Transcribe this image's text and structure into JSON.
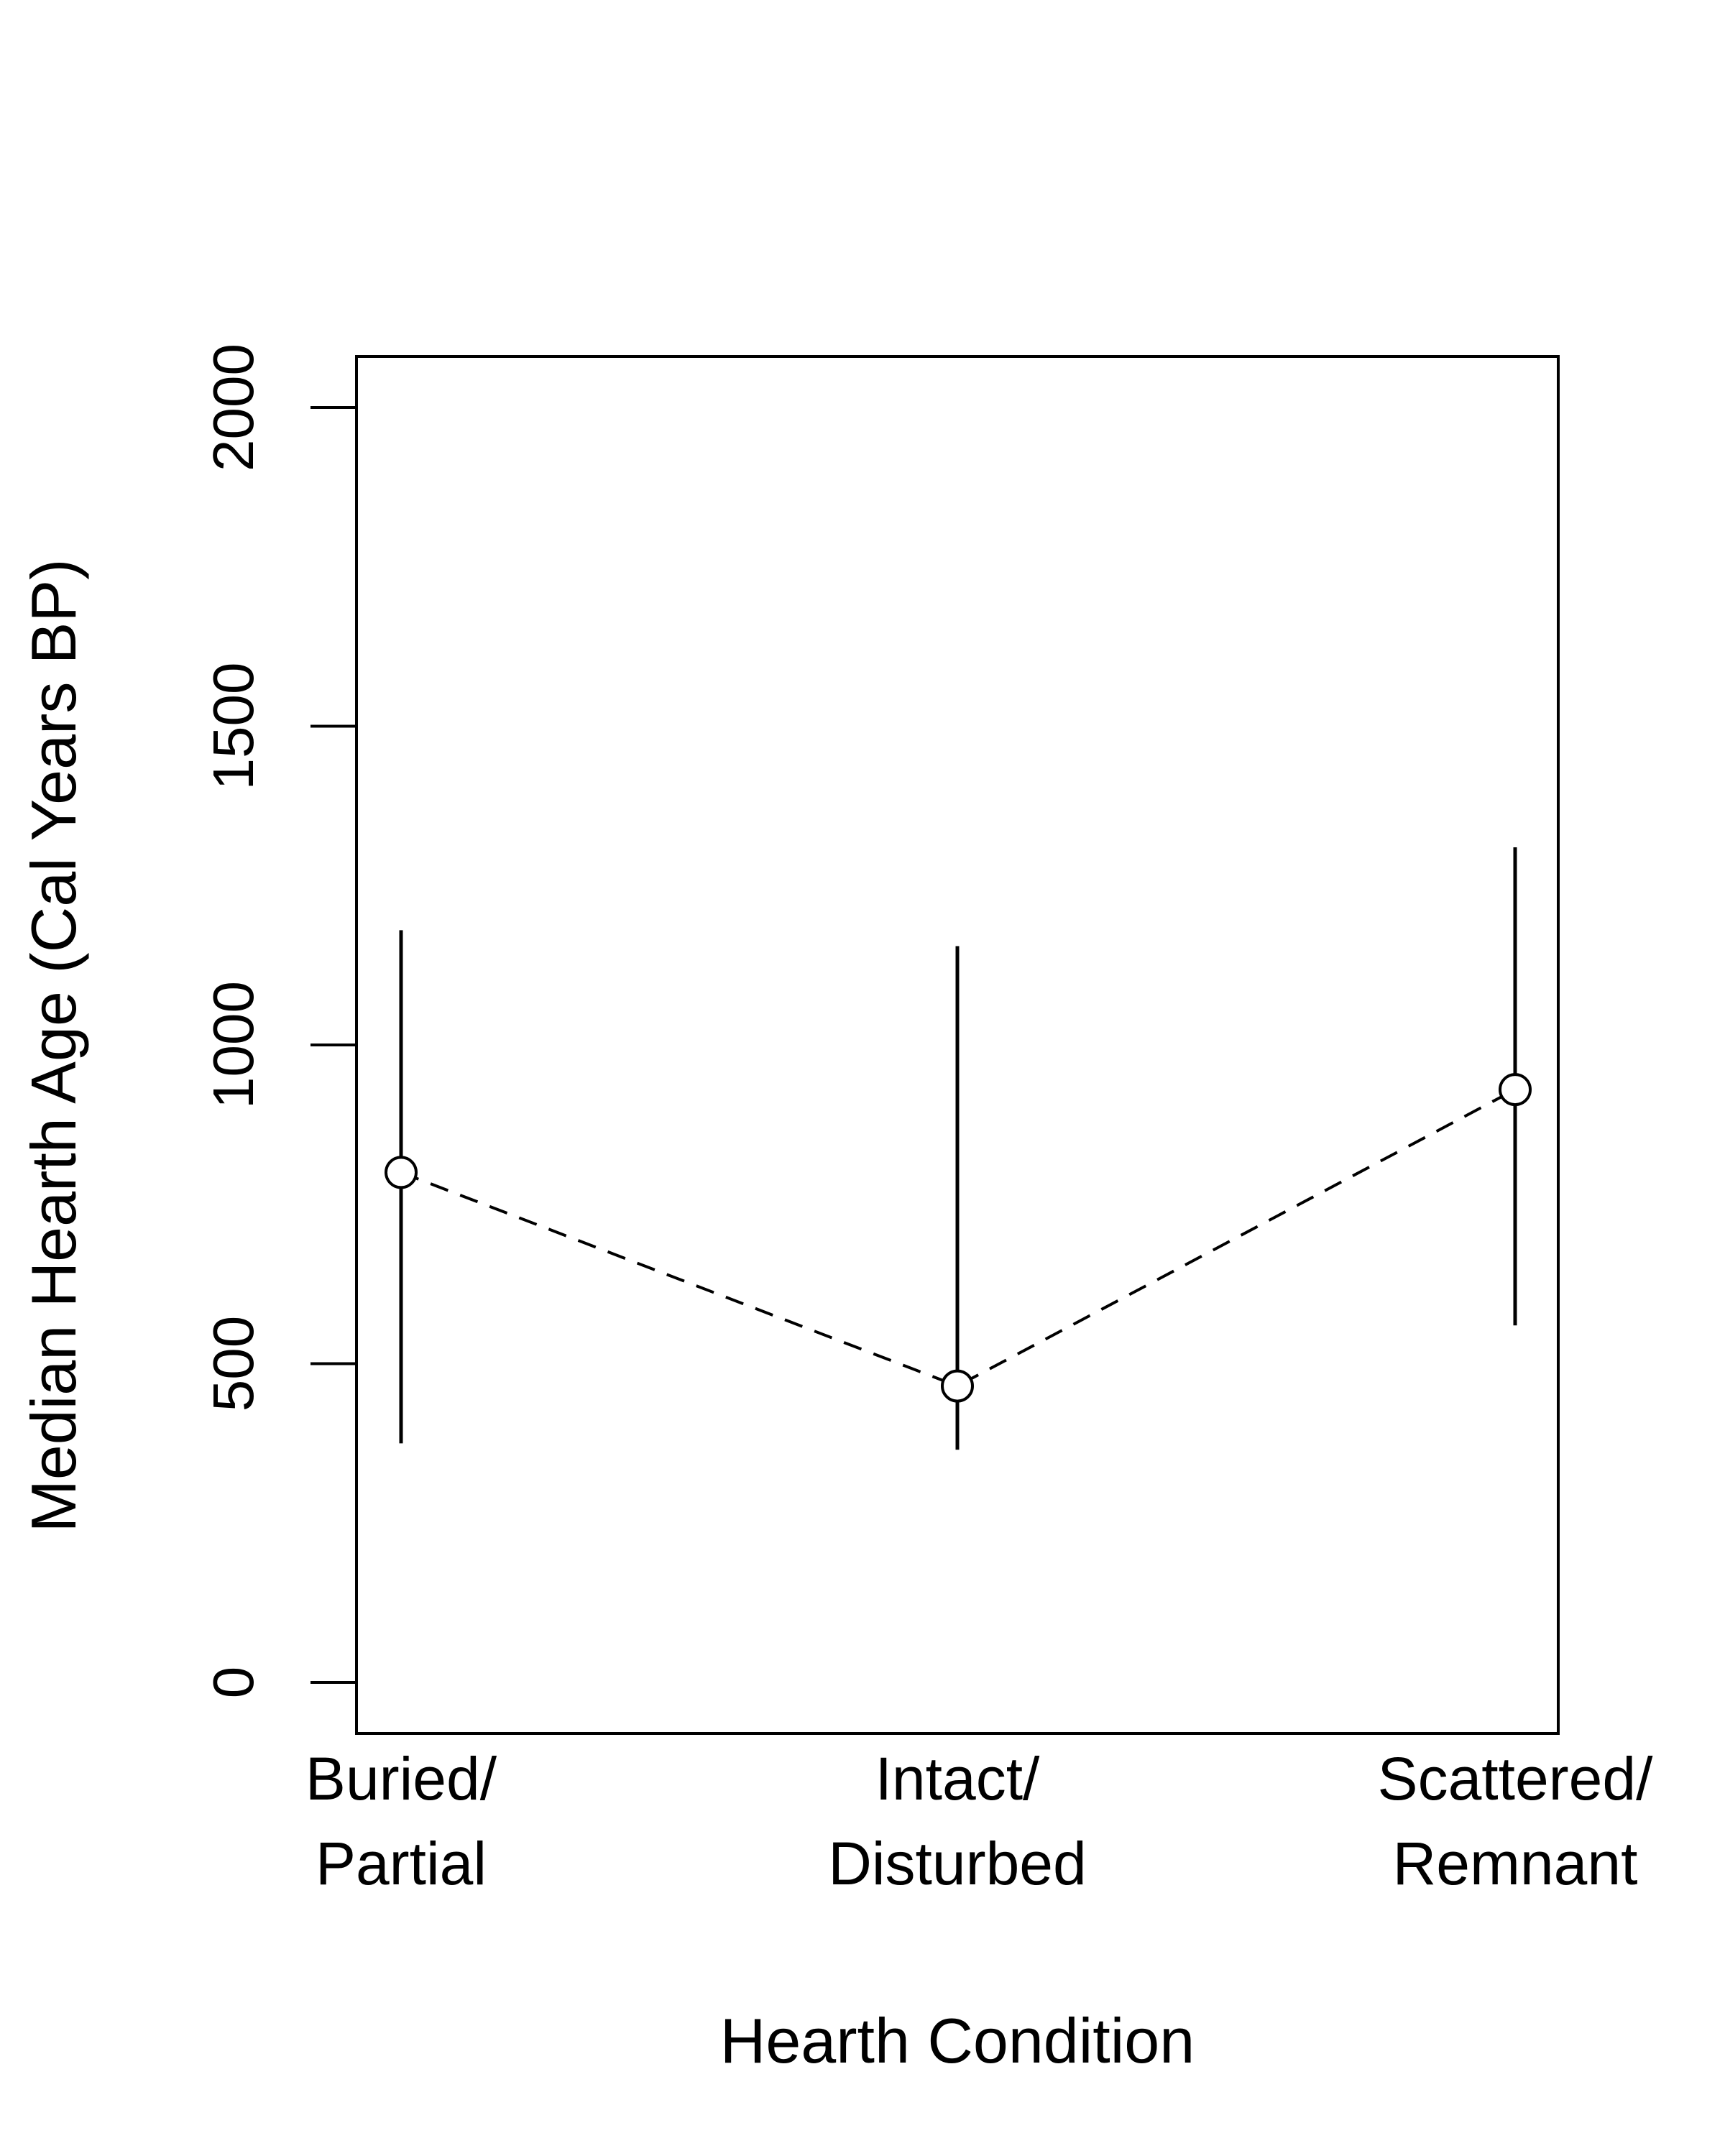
{
  "chart_data": {
    "type": "scatter",
    "title": "",
    "xlabel": "Hearth Condition",
    "ylabel": "Median Hearth Age (Cal Years BP)",
    "categories": [
      [
        "Buried/",
        "Partial"
      ],
      [
        "Intact/",
        "Disturbed"
      ],
      [
        "Scattered/",
        "Remnant"
      ]
    ],
    "y_ticks": [
      "0",
      "500",
      "1000",
      "1500",
      "2000"
    ],
    "ylim": [
      -80,
      2080
    ],
    "series": [
      {
        "values": [
          800,
          465,
          930
        ],
        "lower": [
          375,
          365,
          560
        ],
        "upper": [
          1180,
          1155,
          1310
        ]
      }
    ],
    "line_style": "dashed",
    "marker": "open-circle",
    "grid": false
  }
}
